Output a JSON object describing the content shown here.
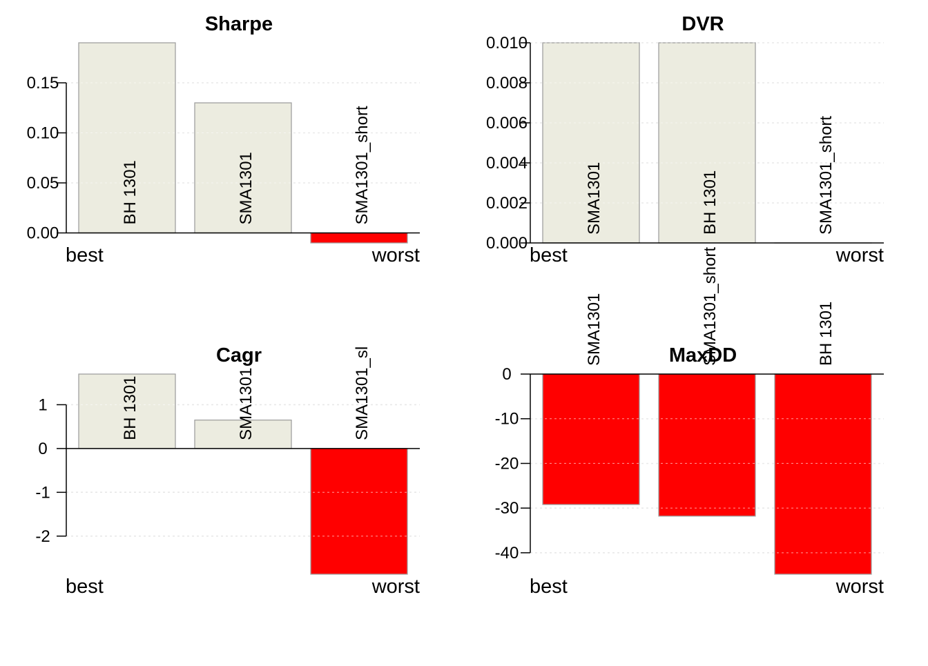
{
  "colors": {
    "positive_bar": "#ECECE0",
    "negative_bar": "#FF0000",
    "bar_border": "#A0A0A0",
    "grid": "#D0D0D0",
    "axis": "#000000"
  },
  "chart_data": [
    {
      "type": "bar",
      "title": "Sharpe",
      "categories": [
        "BH 1301",
        "SMA1301",
        "SMA1301_short"
      ],
      "values": [
        0.19,
        0.13,
        -0.01
      ],
      "ylim": [
        -0.01,
        0.19
      ],
      "yticks": [
        0.0,
        0.05,
        0.1,
        0.15
      ],
      "ytick_labels": [
        "0.00",
        "0.05",
        "0.10",
        "0.15"
      ],
      "left_label": "best",
      "right_label": "worst",
      "grid": true
    },
    {
      "type": "bar",
      "title": "DVR",
      "categories": [
        "SMA1301",
        "BH 1301",
        "SMA1301_short"
      ],
      "values": [
        0.01,
        0.01,
        0.0
      ],
      "ylim": [
        0.0,
        0.01
      ],
      "yticks": [
        0.0,
        0.002,
        0.004,
        0.006,
        0.008,
        0.01
      ],
      "ytick_labels": [
        "0.000",
        "0.002",
        "0.004",
        "0.006",
        "0.008",
        "0.010"
      ],
      "left_label": "best",
      "right_label": "worst",
      "grid": true
    },
    {
      "type": "bar",
      "title": "Cagr",
      "categories": [
        "BH 1301",
        "SMA1301",
        "SMA1301_sl"
      ],
      "values": [
        1.7,
        0.65,
        -2.87
      ],
      "ylim": [
        -2.87,
        1.7
      ],
      "yticks": [
        -2,
        -1,
        0,
        1
      ],
      "ytick_labels": [
        "-2",
        "-1",
        "0",
        "1"
      ],
      "left_label": "best",
      "right_label": "worst",
      "grid": true
    },
    {
      "type": "bar",
      "title": "MaxDD",
      "categories": [
        "SMA1301",
        "SMA1301_short",
        "BH 1301"
      ],
      "values": [
        -29.2,
        -31.8,
        -44.8
      ],
      "ylim": [
        -44.8,
        0
      ],
      "yticks": [
        -40,
        -30,
        -20,
        -10,
        0
      ],
      "ytick_labels": [
        "-40",
        "-30",
        "-20",
        "-10",
        "0"
      ],
      "left_label": "best",
      "right_label": "worst",
      "grid": true
    }
  ]
}
